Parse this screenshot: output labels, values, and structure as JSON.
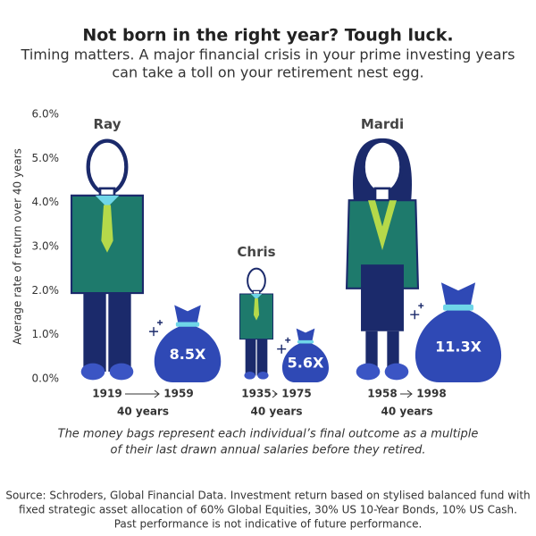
{
  "chart_data": {
    "type": "pictograph",
    "title": "Not born in the right year? Tough luck.",
    "subtitle": [
      "Timing matters. A major financial crisis in your prime investing years",
      "can take a toll on your retirement nest egg."
    ],
    "y_label": "Average rate of return over 40 years",
    "ylim": [
      0,
      6
    ],
    "yticks": [
      {
        "value": 0,
        "label": "0.0%"
      },
      {
        "value": 1,
        "label": "1.0%"
      },
      {
        "value": 2,
        "label": "2.0%"
      },
      {
        "value": 3,
        "label": "3.0%"
      },
      {
        "value": 4,
        "label": "4.0%"
      },
      {
        "value": 5,
        "label": "5.0%"
      },
      {
        "value": 6,
        "label": "6.0%"
      }
    ],
    "categories": [
      "Ray",
      "Chris",
      "Mardi"
    ],
    "values": [
      5.4,
      2.5,
      5.4
    ],
    "bag_values": [
      8.5,
      5.6,
      11.3
    ],
    "bag_value_labels": [
      "8.5X",
      "5.6X",
      "11.3X"
    ],
    "start_years": [
      1919,
      1935,
      1958
    ],
    "end_years": [
      1959,
      1975,
      1998
    ],
    "durations": [
      "40 years",
      "40 years",
      "40 years"
    ],
    "note": [
      "The money bags represent each individual’s final outcome as a multiple",
      "of their last drawn annual salaries before they retired."
    ],
    "source": [
      "Source: Schroders, Global Financial Data. Investment return based on stylised balanced fund with",
      "fixed strategic asset allocation of 60% Global Equities, 30% US 10-Year Bonds, 10% US Cash.",
      "Past performance is not indicative of future performance."
    ],
    "colors": {
      "body": "#1e7a6c",
      "legs": "#1b2a6b",
      "shoes": "#3b55c4",
      "bag": "#2f49b5",
      "tie": "#b5d94a",
      "collar": "#6fd6e8"
    }
  }
}
